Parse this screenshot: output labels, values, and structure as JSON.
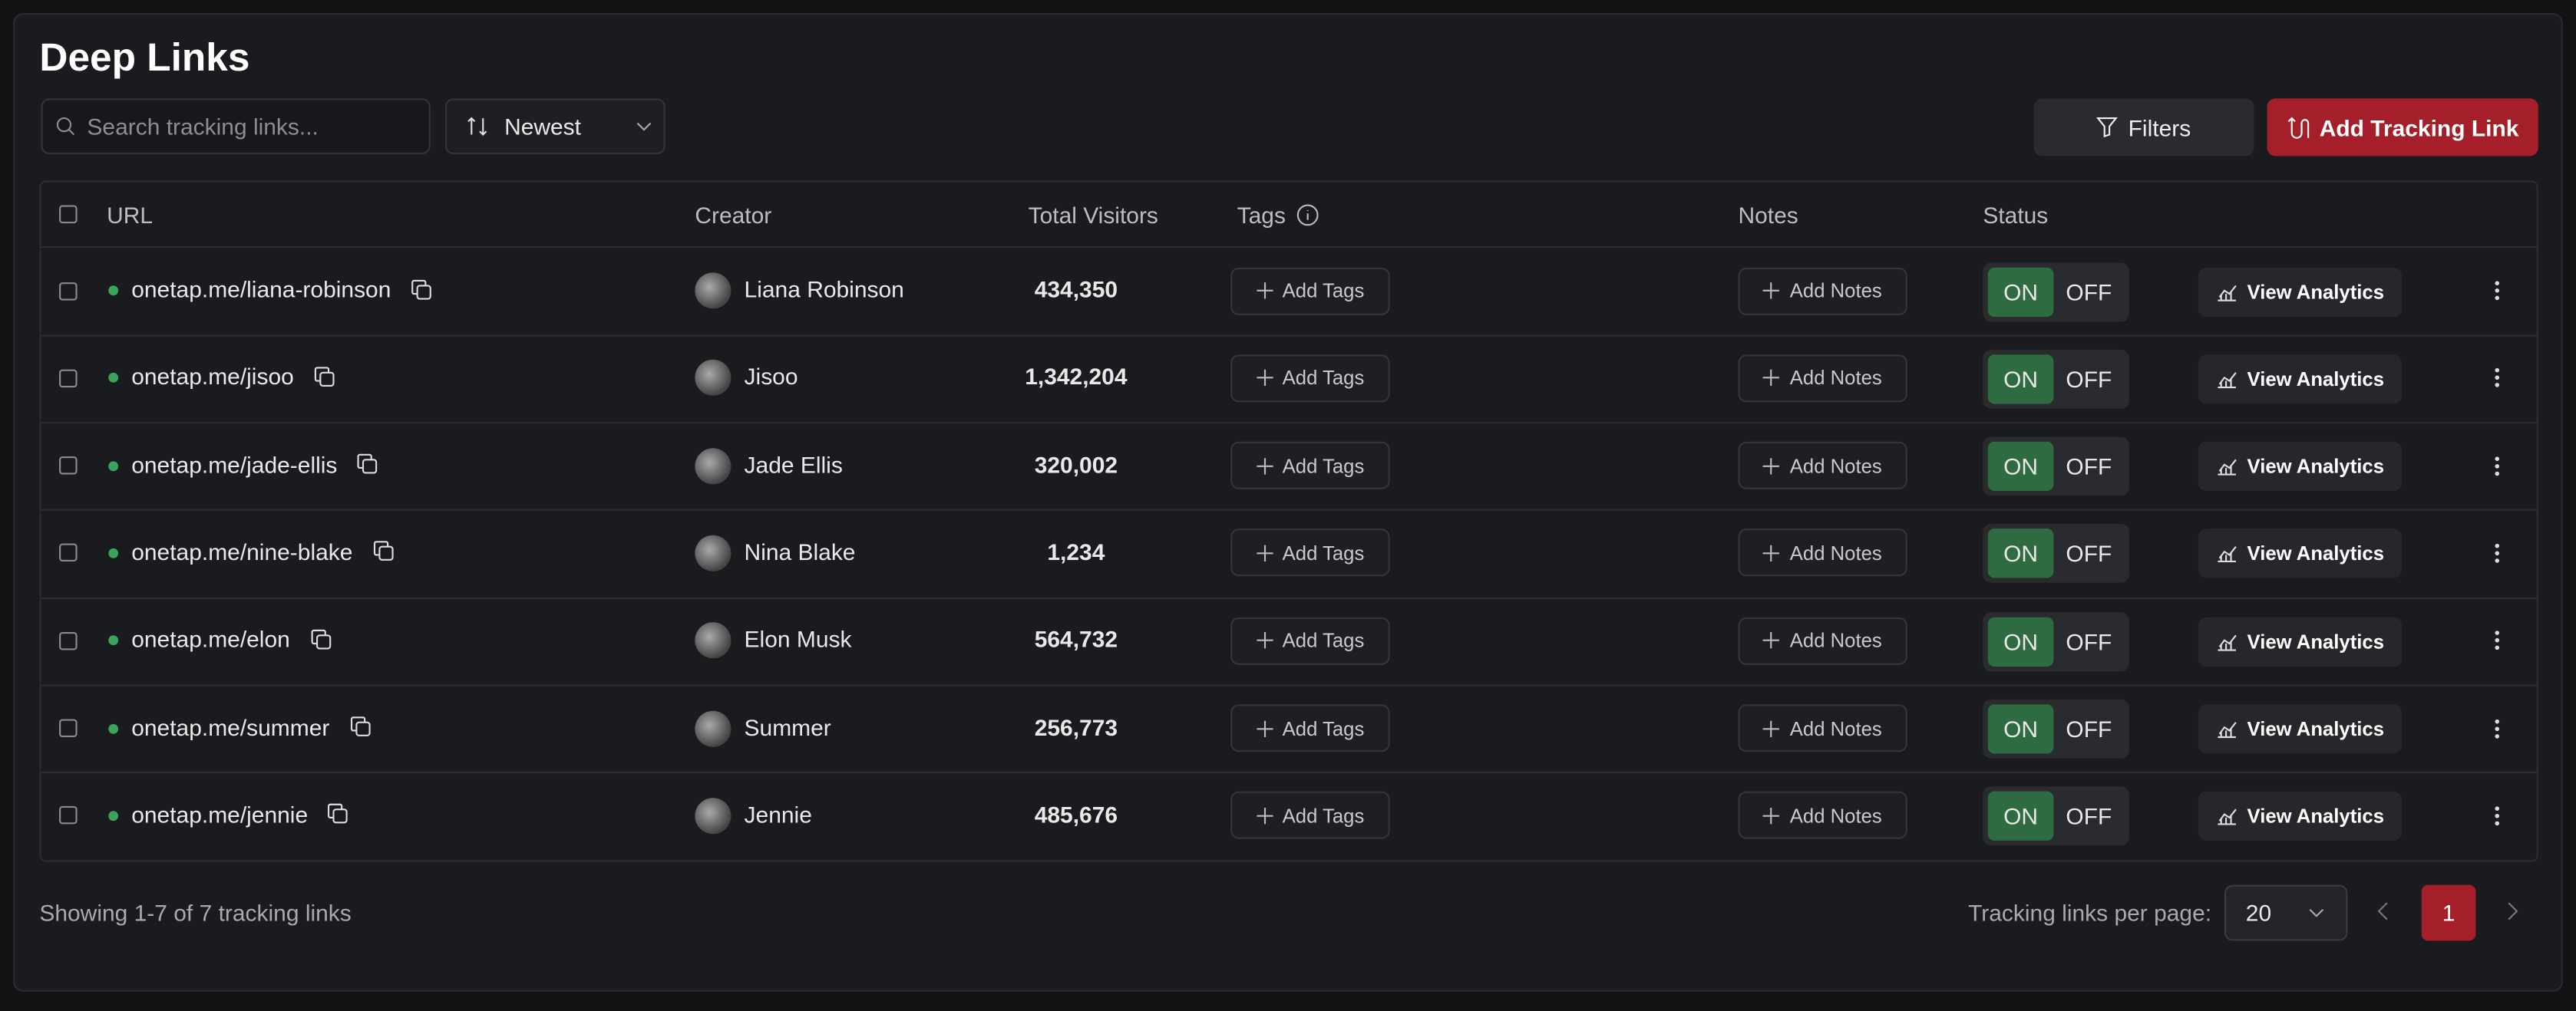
{
  "header": {
    "title": "Deep Links",
    "search_placeholder": "Search tracking links...",
    "sort": "Newest",
    "filters": "Filters",
    "add_button": "Add Tracking Link"
  },
  "table": {
    "columns": [
      "URL",
      "Creator",
      "Total Visitors",
      "Tags",
      "Notes",
      "Status"
    ],
    "row_actions": {
      "add_tags": "Add Tags",
      "add_notes": "Add Notes",
      "on": "ON",
      "off": "OFF",
      "view_analytics": "View Analytics"
    },
    "rows": [
      [
        "onetap.me/liana-robinson",
        "Liana Robinson",
        "434,350"
      ],
      [
        "onetap.me/jisoo",
        "Jisoo",
        "1,342,204"
      ],
      [
        "onetap.me/jade-ellis",
        "Jade Ellis",
        "320,002"
      ],
      [
        "onetap.me/nine-blake",
        "Nina Blake",
        "1,234"
      ],
      [
        "onetap.me/elon",
        "Elon Musk",
        "564,732"
      ],
      [
        "onetap.me/summer",
        "Summer",
        "256,773"
      ],
      [
        "onetap.me/jennie",
        "Jennie",
        "485,676"
      ]
    ]
  },
  "footer": {
    "summary": "Showing 1-7 of 7 tracking links",
    "per_page_label": "Tracking links per page:",
    "per_page": "20",
    "page": "1"
  }
}
